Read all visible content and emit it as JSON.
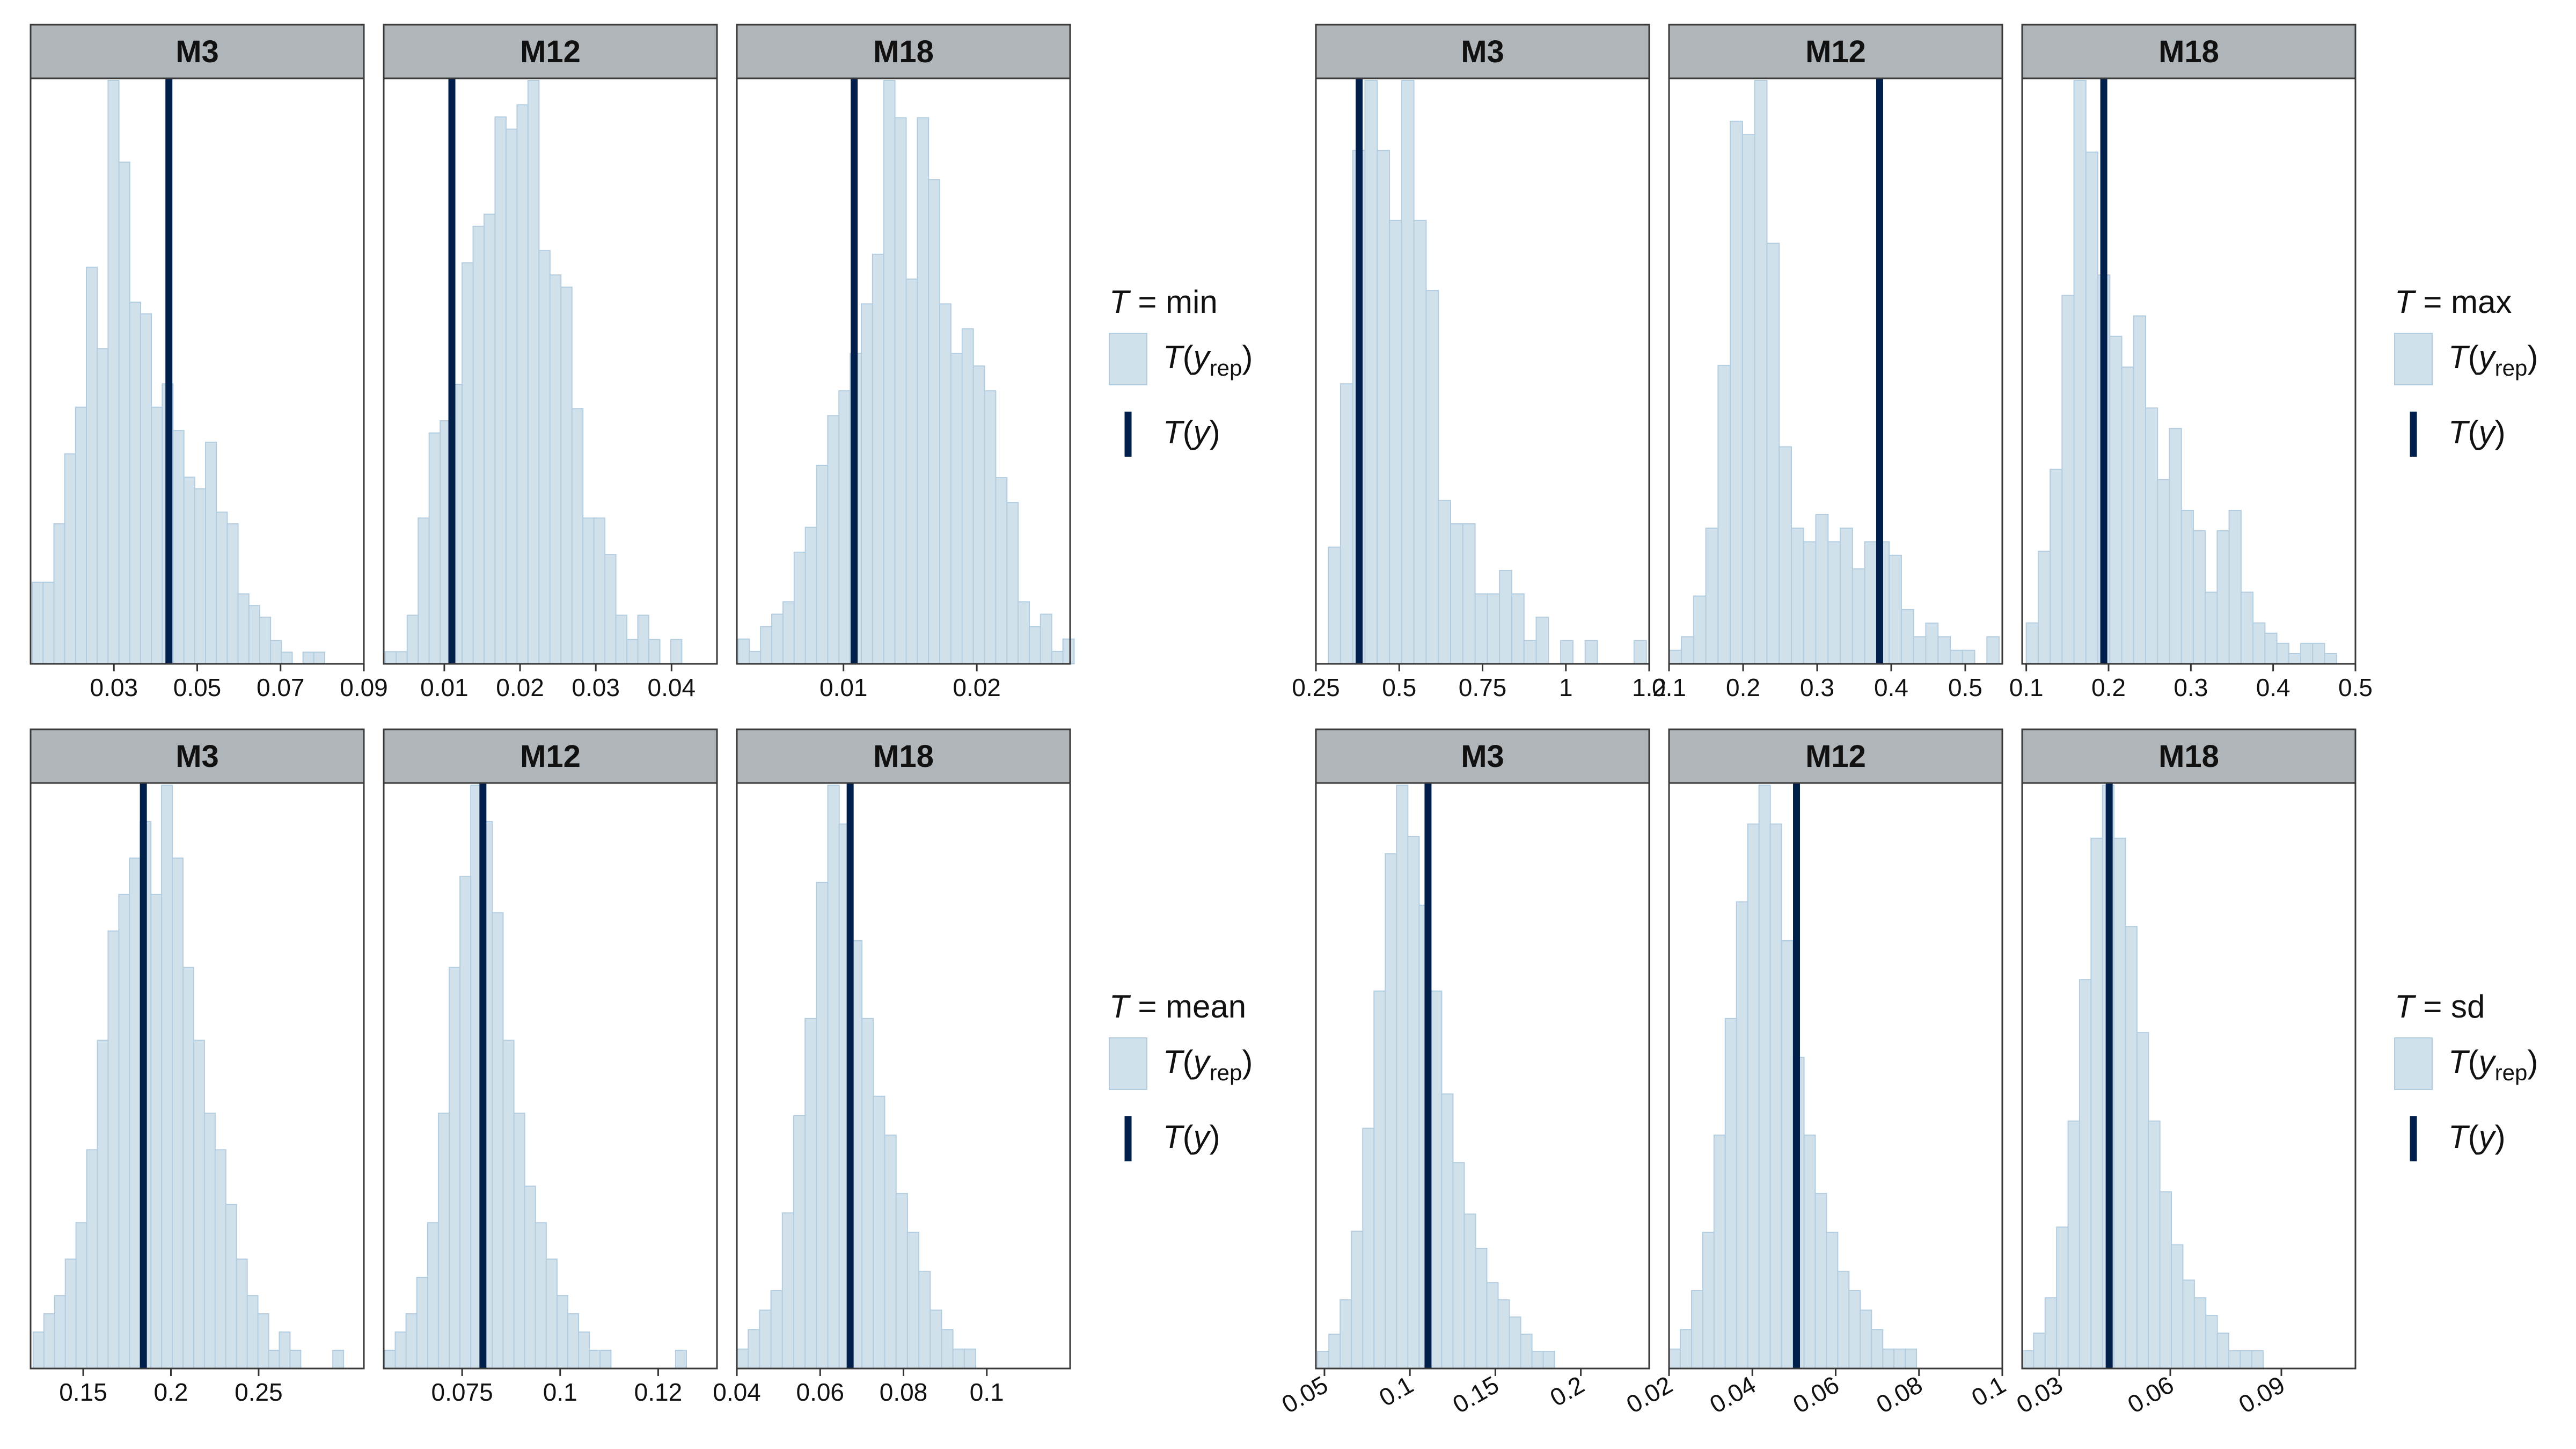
{
  "legend": {
    "rep_label": "T(y_rep)",
    "obs_label": "T(y)"
  },
  "colors": {
    "rep_fill": "#d1e1ec",
    "rep_outline": "#b3cde0",
    "observed_line": "#011f4b",
    "strip_background": "#b0b5ba"
  },
  "chart_data": [
    {
      "type": "histogram",
      "statistic": "min",
      "legend_title": "T = min",
      "panels": [
        {
          "label": "M3",
          "xlim": [
            0.01,
            0.09
          ],
          "ticks": [
            0.03,
            0.05,
            0.07,
            0.09
          ],
          "tick_labels": [
            "0.03",
            "0.05",
            "0.07",
            "0.09"
          ],
          "bin_width": 0.0026,
          "bin_start": 0.0104,
          "counts": [
            14,
            14,
            24,
            36,
            44,
            68,
            54,
            100,
            86,
            62,
            60,
            44,
            48,
            40,
            32,
            30,
            38,
            26,
            24,
            12,
            10,
            8,
            4,
            2,
            0,
            2,
            2
          ],
          "observed": 0.0432
        },
        {
          "label": "M12",
          "xlim": [
            0.002,
            0.046
          ],
          "ticks": [
            0.01,
            0.02,
            0.03,
            0.04
          ],
          "tick_labels": [
            "0.01",
            "0.02",
            "0.03",
            "0.04"
          ],
          "bin_width": 0.00145,
          "bin_start": 0.0022,
          "counts": [
            2,
            2,
            8,
            24,
            38,
            40,
            46,
            66,
            72,
            74,
            90,
            88,
            92,
            96,
            68,
            64,
            62,
            42,
            24,
            24,
            18,
            8,
            4,
            8,
            4,
            0,
            4
          ],
          "observed": 0.011
        },
        {
          "label": "M18",
          "xlim": [
            0.002,
            0.027
          ],
          "ticks": [
            0.01,
            0.02
          ],
          "tick_labels": [
            "0.01",
            "0.02"
          ],
          "bin_width": 0.00084,
          "bin_start": 0.0021,
          "counts": [
            4,
            2,
            6,
            8,
            10,
            18,
            22,
            32,
            40,
            44,
            50,
            58,
            66,
            94,
            88,
            62,
            88,
            78,
            58,
            50,
            54,
            48,
            44,
            30,
            26,
            10,
            6,
            8,
            2,
            4
          ],
          "observed": 0.0108
        }
      ]
    },
    {
      "type": "histogram",
      "statistic": "max",
      "legend_title": "T = max",
      "panels": [
        {
          "label": "M3",
          "xlim": [
            0.25,
            1.25
          ],
          "ticks": [
            0.25,
            0.5,
            0.75,
            1.0,
            1.25
          ],
          "tick_labels": [
            "0.25",
            "0.5",
            "0.75",
            "1",
            "1.2"
          ],
          "bin_width": 0.0367,
          "bin_start": 0.2505,
          "counts": [
            0,
            5,
            12,
            22,
            25,
            22,
            19,
            25,
            19,
            16,
            7,
            6,
            6,
            3,
            3,
            4,
            3,
            1,
            2,
            0,
            1,
            0,
            1,
            0,
            0,
            0,
            1
          ],
          "observed": 0.3797
        },
        {
          "label": "M12",
          "xlim": [
            0.1,
            0.55
          ],
          "ticks": [
            0.1,
            0.2,
            0.3,
            0.4,
            0.5
          ],
          "tick_labels": [
            "0.1",
            "0.2",
            "0.3",
            "0.4",
            "0.5"
          ],
          "bin_width": 0.0165,
          "bin_start": 0.1002,
          "counts": [
            1,
            2,
            5,
            10,
            22,
            40,
            39,
            43,
            31,
            16,
            10,
            9,
            11,
            9,
            10,
            7,
            9,
            9,
            8,
            4,
            2,
            3,
            2,
            1,
            1,
            0,
            2
          ],
          "observed": 0.3844
        },
        {
          "label": "M18",
          "xlim": [
            0.095,
            0.5
          ],
          "ticks": [
            0.1,
            0.2,
            0.3,
            0.4,
            0.5
          ],
          "tick_labels": [
            "0.1",
            "0.2",
            "0.3",
            "0.4",
            "0.5"
          ],
          "bin_width": 0.0145,
          "bin_start": 0.1,
          "counts": [
            4,
            11,
            19,
            36,
            57,
            50,
            38,
            32,
            29,
            34,
            25,
            18,
            23,
            15,
            13,
            7,
            13,
            15,
            7,
            4,
            3,
            2,
            1,
            2,
            2,
            1,
            0
          ],
          "observed": 0.1942
        }
      ]
    },
    {
      "type": "histogram",
      "statistic": "mean",
      "legend_title": "T = mean",
      "panels": [
        {
          "label": "M3",
          "xlim": [
            0.12,
            0.31
          ],
          "ticks": [
            0.15,
            0.2,
            0.25
          ],
          "tick_labels": [
            "0.15",
            "0.2",
            "0.25"
          ],
          "bin_width": 0.0061,
          "bin_start": 0.1215,
          "counts": [
            2,
            3,
            4,
            6,
            8,
            12,
            18,
            24,
            26,
            28,
            30,
            26,
            32,
            28,
            22,
            18,
            14,
            12,
            9,
            6,
            4,
            3,
            1,
            2,
            1,
            0,
            0,
            0,
            1,
            0,
            0
          ],
          "observed": 0.1843
        },
        {
          "label": "M12",
          "xlim": [
            0.055,
            0.14
          ],
          "ticks": [
            0.075,
            0.1,
            0.125
          ],
          "tick_labels": [
            "0.075",
            "0.1",
            "0.12"
          ],
          "bin_width": 0.00275,
          "bin_start": 0.0552,
          "counts": [
            1,
            2,
            3,
            5,
            8,
            14,
            22,
            27,
            32,
            30,
            25,
            18,
            14,
            10,
            8,
            6,
            4,
            3,
            2,
            1,
            1,
            0,
            0,
            0,
            0,
            0,
            0,
            1,
            0,
            0
          ],
          "observed": 0.0803
        },
        {
          "label": "M18",
          "xlim": [
            0.04,
            0.12
          ],
          "ticks": [
            0.04,
            0.06,
            0.08,
            0.1
          ],
          "tick_labels": [
            "0.04",
            "0.06",
            "0.08",
            "0.1"
          ],
          "bin_width": 0.00273,
          "bin_start": 0.04,
          "counts": [
            1,
            2,
            3,
            4,
            8,
            13,
            18,
            25,
            30,
            28,
            22,
            18,
            14,
            12,
            9,
            7,
            5,
            3,
            2,
            1,
            1,
            0,
            0,
            0,
            0,
            0,
            0,
            0,
            0
          ],
          "observed": 0.0672
        }
      ]
    },
    {
      "type": "histogram",
      "statistic": "sd",
      "legend_title": "T = sd",
      "panels": [
        {
          "label": "M3",
          "xlim": [
            0.045,
            0.24
          ],
          "ticks": [
            0.05,
            0.1,
            0.15,
            0.2
          ],
          "tick_labels": [
            "0.05",
            "0.1",
            "0.15",
            "0.2"
          ],
          "bin_width": 0.0066,
          "bin_start": 0.046,
          "counts": [
            1,
            2,
            4,
            8,
            14,
            22,
            30,
            34,
            31,
            27,
            22,
            16,
            12,
            9,
            7,
            5,
            4,
            3,
            2,
            1,
            1,
            0,
            0,
            0,
            0,
            0,
            0,
            0,
            0
          ],
          "observed": 0.1106
        },
        {
          "label": "M12",
          "xlim": [
            0.02,
            0.1
          ],
          "ticks": [
            0.02,
            0.04,
            0.06,
            0.08,
            0.1
          ],
          "tick_labels": [
            "0.02",
            "0.04",
            "0.06",
            "0.08",
            "0.1"
          ],
          "bin_width": 0.0027,
          "bin_start": 0.02,
          "counts": [
            1,
            2,
            4,
            7,
            12,
            18,
            24,
            28,
            30,
            28,
            22,
            16,
            12,
            9,
            7,
            5,
            4,
            3,
            2,
            1,
            1,
            1,
            0,
            0,
            0,
            0,
            0,
            0,
            0
          ],
          "observed": 0.0506
        },
        {
          "label": "M18",
          "xlim": [
            0.02,
            0.11
          ],
          "ticks": [
            0.03,
            0.06,
            0.09
          ],
          "tick_labels": [
            "0.03",
            "0.06",
            "0.09"
          ],
          "bin_width": 0.0031,
          "bin_start": 0.02,
          "counts": [
            1,
            2,
            4,
            8,
            14,
            22,
            30,
            33,
            30,
            25,
            19,
            14,
            10,
            7,
            5,
            4,
            3,
            2,
            1,
            1,
            1,
            0,
            0,
            0,
            0,
            0,
            0,
            0,
            0
          ],
          "observed": 0.0435
        }
      ]
    }
  ]
}
